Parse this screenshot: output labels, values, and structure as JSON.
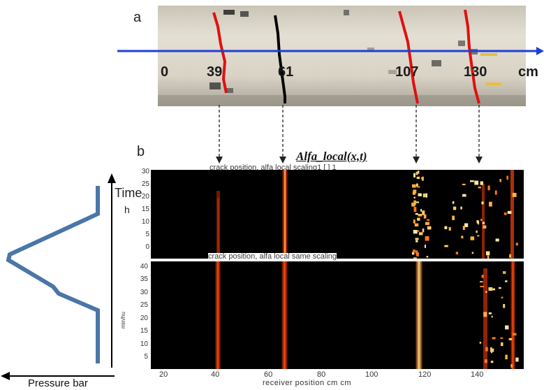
{
  "panel_a": {
    "label": "a",
    "axis_labels": [
      "0",
      "39",
      "61",
      "107",
      "130"
    ],
    "unit": "cm"
  },
  "panel_b": {
    "label": "b",
    "title": "Alfa_local(x,t)",
    "top_subtitle": "crack position, alfa local scaling1  [ ]  1",
    "bottom_subtitle": "crack position, alfa local same scaling",
    "top_y_ticks": [
      "30",
      "25",
      "20",
      "15",
      "10",
      "5",
      "0"
    ],
    "bottom_y_ticks": [
      "40",
      "35",
      "30",
      "25",
      "20",
      "15",
      "10",
      "5"
    ],
    "bottom_y_label": "min/hu",
    "x_ticks": [
      "20",
      "40",
      "60",
      "80",
      "100",
      "120",
      "140"
    ],
    "x_label": "receiver position  cm cm"
  },
  "time_axis": {
    "label": "Time",
    "unit": "h"
  },
  "pressure_label": "Pressure bar",
  "colors": {
    "blue_line": "#1f3fd6",
    "crack_red": "#e01010",
    "crack_black": "#000000",
    "pressure_curve": "#4a76a8",
    "heat_bright": "#ffe8a0",
    "heat_mid": "#ff7a1a",
    "heat_dark": "#9a1a05"
  }
}
